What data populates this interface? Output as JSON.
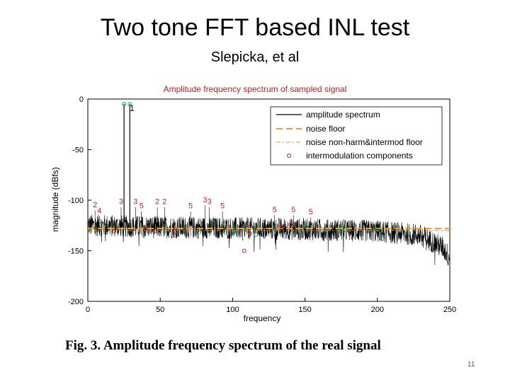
{
  "slide": {
    "title": "Two tone FFT based INL test",
    "subtitle": "Slepicka, et al",
    "caption": "Fig. 3.  Amplitude frequency spectrum of the real signal",
    "page_number": "11"
  },
  "colors": {
    "spectrum": "#000000",
    "noise_floor": "#f0a030",
    "nonharm_floor": "#b0a040",
    "marker_red": "#d02020",
    "marker_green": "#10a050",
    "marker_blue": "#2080c0",
    "title_red": "#c02020"
  },
  "chart_data": {
    "type": "line",
    "title": "Amplitude frequency spectrum of sampled signal",
    "xlabel": "frequency",
    "ylabel": "magnitude (dBfs)",
    "xlim": [
      0,
      250
    ],
    "ylim": [
      -200,
      0
    ],
    "xticks": [
      0,
      50,
      100,
      150,
      200,
      250
    ],
    "yticks": [
      0,
      -50,
      -100,
      -150,
      -200
    ],
    "legend": {
      "placement": "top-right",
      "entries": [
        "amplitude spectrum",
        "noise floor",
        "noise non-harm&intermod floor",
        "intermodulation components"
      ]
    },
    "tones": [
      {
        "x": 25,
        "y": -5,
        "label": "1"
      },
      {
        "x": 29,
        "y": -5,
        "label": ""
      }
    ],
    "noise_floor_level": -128,
    "nonharm_floor_level": -130,
    "spectrum_baseline": {
      "x": [
        0,
        50,
        100,
        150,
        200,
        230,
        245,
        250
      ],
      "y": [
        -128,
        -130,
        -131,
        -132,
        -134,
        -138,
        -150,
        -160
      ]
    },
    "annotations": [
      {
        "x": 5,
        "y": -107,
        "text": "2"
      },
      {
        "x": 8,
        "y": -113,
        "text": "4"
      },
      {
        "x": 23,
        "y": -104,
        "text": "3"
      },
      {
        "x": 33,
        "y": -104,
        "text": "3"
      },
      {
        "x": 37,
        "y": -108,
        "text": "5"
      },
      {
        "x": 48,
        "y": -104,
        "text": "2"
      },
      {
        "x": 53,
        "y": -104,
        "text": "2"
      },
      {
        "x": 71,
        "y": -108,
        "text": "5"
      },
      {
        "x": 81,
        "y": -102,
        "text": "3"
      },
      {
        "x": 84,
        "y": -104,
        "text": "3"
      },
      {
        "x": 93,
        "y": -108,
        "text": "5"
      },
      {
        "x": 129,
        "y": -112,
        "text": "5"
      },
      {
        "x": 142,
        "y": -112,
        "text": "5"
      },
      {
        "x": 154,
        "y": -114,
        "text": "5"
      }
    ],
    "intermod_markers": [
      {
        "x": 18,
        "y": -131,
        "c": "red"
      },
      {
        "x": 40,
        "y": -128,
        "c": "red"
      },
      {
        "x": 46,
        "y": -131,
        "c": "red"
      },
      {
        "x": 60,
        "y": -131,
        "c": "red"
      },
      {
        "x": 87,
        "y": -123,
        "c": "green"
      },
      {
        "x": 101,
        "y": -131,
        "c": "green"
      },
      {
        "x": 112,
        "y": -133,
        "c": "red"
      },
      {
        "x": 116,
        "y": -134,
        "c": "green"
      },
      {
        "x": 134,
        "y": -127,
        "c": "red"
      },
      {
        "x": 140,
        "y": -124,
        "c": "red"
      },
      {
        "x": 150,
        "y": -126,
        "c": "green"
      },
      {
        "x": 173,
        "y": -131,
        "c": "green"
      },
      {
        "x": 178,
        "y": -129,
        "c": "green"
      },
      {
        "x": 200,
        "y": -129,
        "c": "green"
      },
      {
        "x": 203,
        "y": -138,
        "c": "green"
      },
      {
        "x": 108,
        "y": -150,
        "c": "red"
      }
    ]
  }
}
